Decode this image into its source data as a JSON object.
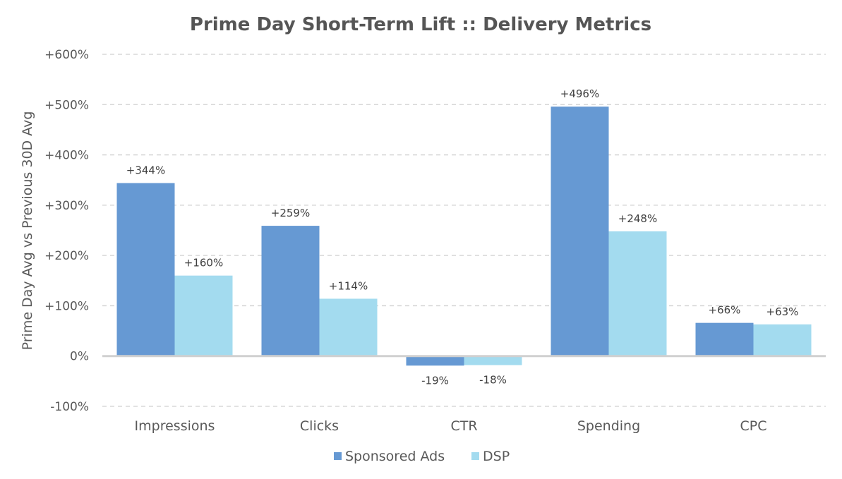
{
  "chart_data": {
    "type": "bar",
    "title": "Prime Day Short-Term Lift :: Delivery Metrics",
    "ylabel": "Prime Day Avg vs Previous 30D Avg",
    "xlabel": "",
    "categories": [
      "Impressions",
      "Clicks",
      "CTR",
      "Spending",
      "CPC"
    ],
    "ylim": [
      -100,
      600
    ],
    "yticks": [
      -100,
      0,
      100,
      200,
      300,
      400,
      500,
      600
    ],
    "ytick_labels": [
      "-100%",
      "0%",
      "+100%",
      "+200%",
      "+300%",
      "+400%",
      "+500%",
      "+600%"
    ],
    "grid": true,
    "legend_position": "bottom",
    "series": [
      {
        "name": "Sponsored Ads",
        "color": "#6699d3",
        "values": [
          344,
          259,
          -19,
          496,
          66
        ],
        "labels": [
          "+344%",
          "+259%",
          "-19%",
          "+496%",
          "+66%"
        ]
      },
      {
        "name": "DSP",
        "color": "#a3dbef",
        "values": [
          160,
          114,
          -18,
          248,
          63
        ],
        "labels": [
          "+160%",
          "+114%",
          "-18%",
          "+248%",
          "+63%"
        ]
      }
    ]
  }
}
